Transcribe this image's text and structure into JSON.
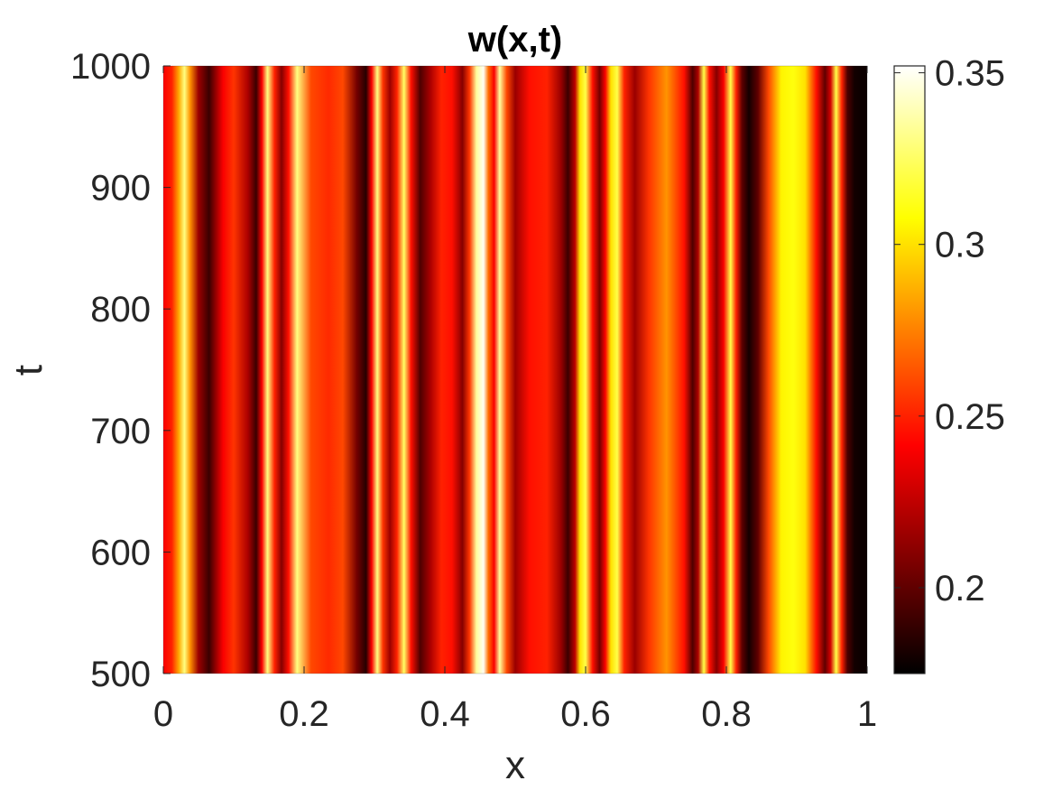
{
  "chart_data": {
    "type": "heatmap",
    "title": "w(x,t)",
    "xlabel": "x",
    "ylabel": "t",
    "xlim": [
      0,
      1
    ],
    "ylim": [
      500,
      1000
    ],
    "x_ticks": [
      0,
      0.2,
      0.4,
      0.6,
      0.8,
      1
    ],
    "x_tick_labels": [
      "0",
      "0.2",
      "0.4",
      "0.6",
      "0.8",
      "1"
    ],
    "y_ticks": [
      500,
      600,
      700,
      800,
      900,
      1000
    ],
    "y_tick_labels": [
      "500",
      "600",
      "700",
      "800",
      "900",
      "1000"
    ],
    "colormap": "hot",
    "clim": [
      0.175,
      0.352
    ],
    "colorbar_ticks": [
      0.2,
      0.25,
      0.3,
      0.35
    ],
    "colorbar_tick_labels": [
      "0.2",
      "0.25",
      "0.3",
      "0.35"
    ],
    "grid": false,
    "profile_description": "w is constant in t; values vary with x only",
    "profile": {
      "x": [
        0,
        0.012,
        0.022,
        0.03,
        0.038,
        0.05,
        0.065,
        0.085,
        0.1,
        0.12,
        0.132,
        0.14,
        0.148,
        0.158,
        0.168,
        0.178,
        0.19,
        0.21,
        0.235,
        0.255,
        0.275,
        0.288,
        0.296,
        0.304,
        0.312,
        0.322,
        0.332,
        0.342,
        0.352,
        0.365,
        0.38,
        0.395,
        0.41,
        0.425,
        0.435,
        0.445,
        0.455,
        0.462,
        0.47,
        0.478,
        0.488,
        0.5,
        0.52,
        0.545,
        0.565,
        0.575,
        0.585,
        0.592,
        0.6,
        0.61,
        0.62,
        0.628,
        0.636,
        0.645,
        0.655,
        0.67,
        0.69,
        0.715,
        0.74,
        0.752,
        0.76,
        0.768,
        0.776,
        0.786,
        0.796,
        0.806,
        0.814,
        0.822,
        0.832,
        0.845,
        0.86,
        0.878,
        0.895,
        0.912,
        0.928,
        0.94,
        0.948,
        0.956,
        0.964,
        0.972,
        0.982,
        0.992,
        1.0
      ],
      "w": [
        0.24,
        0.25,
        0.285,
        0.33,
        0.28,
        0.215,
        0.19,
        0.24,
        0.255,
        0.22,
        0.19,
        0.24,
        0.33,
        0.25,
        0.21,
        0.245,
        0.33,
        0.26,
        0.252,
        0.26,
        0.205,
        0.185,
        0.24,
        0.33,
        0.255,
        0.215,
        0.25,
        0.325,
        0.245,
        0.195,
        0.22,
        0.25,
        0.245,
        0.21,
        0.255,
        0.335,
        0.35,
        0.27,
        0.24,
        0.335,
        0.26,
        0.215,
        0.245,
        0.25,
        0.215,
        0.19,
        0.225,
        0.3,
        0.32,
        0.245,
        0.205,
        0.24,
        0.3,
        0.32,
        0.25,
        0.215,
        0.255,
        0.28,
        0.245,
        0.195,
        0.22,
        0.32,
        0.245,
        0.21,
        0.24,
        0.32,
        0.25,
        0.2,
        0.18,
        0.2,
        0.26,
        0.305,
        0.31,
        0.3,
        0.245,
        0.2,
        0.23,
        0.32,
        0.25,
        0.195,
        0.18,
        0.178,
        0.178
      ]
    }
  },
  "colors": {
    "text": "#262626",
    "title": "#000000",
    "axis": "#262626"
  }
}
